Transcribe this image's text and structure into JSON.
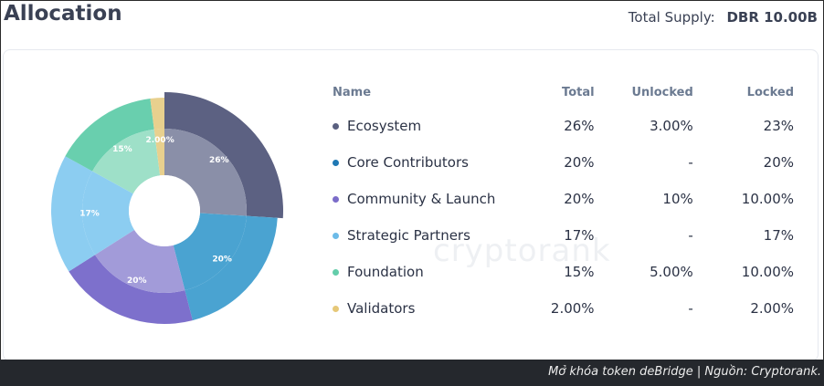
{
  "header": {
    "title": "Allocation",
    "supply_label": "Total Supply:",
    "supply_value": "DBR 10.00B"
  },
  "watermark": "cryptorank",
  "table": {
    "headers": {
      "name": "Name",
      "total": "Total",
      "unlocked": "Unlocked",
      "locked": "Locked"
    },
    "rows": [
      {
        "name": "Ecosystem",
        "total": "26%",
        "unlocked": "3.00%",
        "locked": "23%",
        "color": "#5a6080"
      },
      {
        "name": "Core Contributors",
        "total": "20%",
        "unlocked": "-",
        "locked": "20%",
        "color": "#1f78b4"
      },
      {
        "name": "Community & Launch",
        "total": "20%",
        "unlocked": "10%",
        "locked": "10.00%",
        "color": "#7b6cc9"
      },
      {
        "name": "Strategic Partners",
        "total": "17%",
        "unlocked": "-",
        "locked": "17%",
        "color": "#6cbbe8"
      },
      {
        "name": "Foundation",
        "total": "15%",
        "unlocked": "5.00%",
        "locked": "10.00%",
        "color": "#63cdaa"
      },
      {
        "name": "Validators",
        "total": "2.00%",
        "unlocked": "-",
        "locked": "2.00%",
        "color": "#e6c878"
      }
    ]
  },
  "chart_data": {
    "type": "pie",
    "slices": [
      {
        "label": "26%",
        "value": 26,
        "unlocked": 3,
        "inner_color": "#8a8fa8",
        "outer_color": "#5c6182"
      },
      {
        "label": "20%",
        "value": 20,
        "unlocked": 0,
        "inner_color": "#4aa3d1",
        "outer_color": "#4aa3d1"
      },
      {
        "label": "20%",
        "value": 20,
        "unlocked": 10,
        "inner_color": "#a29bd9",
        "outer_color": "#7d70cc"
      },
      {
        "label": "17%",
        "value": 17,
        "unlocked": 0,
        "inner_color": "#8ccdf1",
        "outer_color": "#8ccdf1"
      },
      {
        "label": "15%",
        "value": 15,
        "unlocked": 5,
        "inner_color": "#9ee0c8",
        "outer_color": "#69cfae"
      },
      {
        "label": "2.00%",
        "value": 2,
        "unlocked": 0,
        "inner_color": "#e8d08e",
        "outer_color": "#e8d08e"
      }
    ]
  },
  "footer": {
    "caption": "Mở khóa token deBridge | Nguồn: Cryptorank."
  }
}
